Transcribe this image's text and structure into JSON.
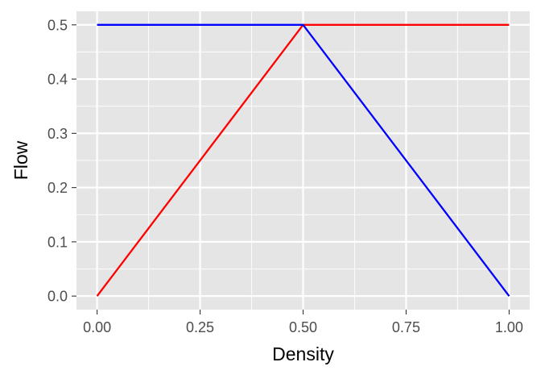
{
  "chart_data": {
    "type": "line",
    "title": "",
    "xlabel": "Density",
    "ylabel": "Flow",
    "xlim": [
      -0.05,
      1.05
    ],
    "ylim": [
      -0.025,
      0.525
    ],
    "x_ticks": [
      0.0,
      0.25,
      0.5,
      0.75,
      1.0
    ],
    "x_tick_labels": [
      "0.00",
      "0.25",
      "0.50",
      "0.75",
      "1.00"
    ],
    "y_ticks": [
      0.0,
      0.1,
      0.2,
      0.3,
      0.4,
      0.5
    ],
    "y_tick_labels": [
      "0.0",
      "0.1",
      "0.2",
      "0.3",
      "0.4",
      "0.5"
    ],
    "grid": true,
    "legend": "none",
    "panel_background": "#e5e5e5",
    "grid_color": "#ffffff",
    "series": [
      {
        "color": "#ff0000",
        "x": [
          0.0,
          0.5,
          1.0
        ],
        "y": [
          0.0,
          0.5,
          0.5
        ]
      },
      {
        "color": "#0000ff",
        "x": [
          0.0,
          0.5,
          1.0
        ],
        "y": [
          0.5,
          0.5,
          0.0
        ]
      }
    ]
  }
}
